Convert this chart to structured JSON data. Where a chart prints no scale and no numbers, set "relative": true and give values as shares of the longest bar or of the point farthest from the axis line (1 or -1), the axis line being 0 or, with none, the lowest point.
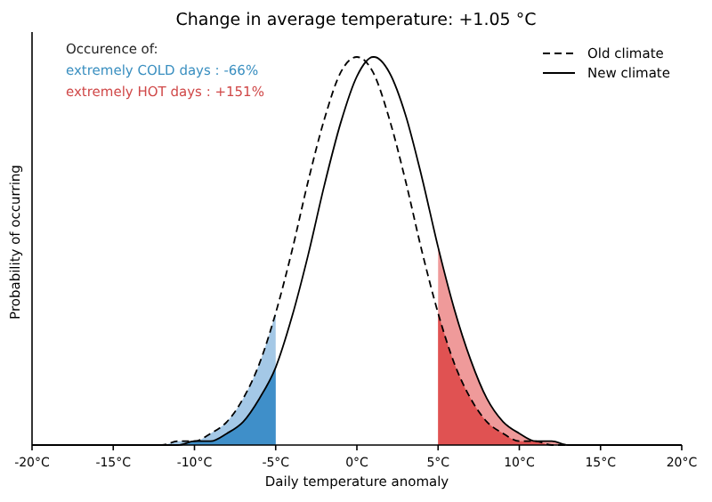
{
  "chart_data": {
    "type": "line",
    "title": "Change in average temperature: +1.05 °C",
    "xlabel": "Daily temperature anomaly",
    "ylabel": "Probability of occurring",
    "relative": true,
    "xlim": [
      -20,
      20
    ],
    "xticks": [
      {
        "value": -20,
        "label": "-20°C"
      },
      {
        "value": -15,
        "label": "-15°C"
      },
      {
        "value": -10,
        "label": "-10°C"
      },
      {
        "value": -5,
        "label": "-5°C"
      },
      {
        "value": 0,
        "label": "0°C"
      },
      {
        "value": 5,
        "label": "5°C"
      },
      {
        "value": 10,
        "label": "10°C"
      },
      {
        "value": 15,
        "label": "15°C"
      },
      {
        "value": 20,
        "label": "20°C"
      }
    ],
    "annotations": [
      "Occurence of:",
      "extremely COLD days : -66%",
      "extremely HOT days : +151%"
    ],
    "legend": "top right",
    "grid": false,
    "series": [
      {
        "type": "area",
        "color": "#a4c8e6",
        "x": [
          -20,
          -15,
          -14,
          -13,
          -12,
          -11,
          -10,
          -9,
          -8,
          -7,
          -6,
          -5
        ],
        "values": [
          0,
          0,
          0,
          0,
          0,
          0.01,
          0.01,
          0.03,
          0.06,
          0.12,
          0.21,
          0.34
        ]
      },
      {
        "type": "area",
        "color": "#3f8fc9",
        "x": [
          -20,
          -15,
          -14,
          -13,
          -12,
          -11,
          -10,
          -9,
          -8,
          -7,
          -6,
          -5
        ],
        "values": [
          0,
          0,
          0,
          0,
          0,
          0,
          0.01,
          0.01,
          0.03,
          0.06,
          0.12,
          0.2
        ]
      },
      {
        "type": "area",
        "color": "#ef9a9a",
        "x": [
          5,
          6,
          7,
          8,
          9,
          10,
          11,
          12,
          13,
          14,
          15,
          20
        ],
        "values": [
          0.51,
          0.35,
          0.22,
          0.12,
          0.06,
          0.03,
          0.01,
          0.01,
          0,
          0,
          0,
          0
        ]
      },
      {
        "type": "area",
        "color": "#e05252",
        "x": [
          5,
          6,
          7,
          8,
          9,
          10,
          11,
          12,
          13,
          14,
          15,
          20
        ],
        "values": [
          0.34,
          0.21,
          0.12,
          0.06,
          0.03,
          0.01,
          0.01,
          0,
          0,
          0,
          0,
          0
        ]
      },
      {
        "type": "line",
        "name": "Old climate",
        "color": "#000000",
        "line_style": "dashed",
        "x": [
          -20,
          -15,
          -14,
          -13,
          -12,
          -11,
          -10,
          -9,
          -8,
          -7,
          -6,
          -5,
          -4,
          -3,
          -2,
          -1,
          0,
          1,
          2,
          3,
          4,
          5,
          6,
          7,
          8,
          9,
          10,
          11,
          12,
          13,
          14,
          15,
          20
        ],
        "values": [
          0,
          0,
          0,
          0,
          0,
          0.01,
          0.01,
          0.03,
          0.06,
          0.12,
          0.21,
          0.34,
          0.5,
          0.68,
          0.84,
          0.96,
          1,
          0.96,
          0.84,
          0.68,
          0.5,
          0.34,
          0.21,
          0.12,
          0.06,
          0.03,
          0.01,
          0.01,
          0,
          0,
          0,
          0,
          0
        ]
      },
      {
        "type": "line",
        "name": "New climate",
        "color": "#000000",
        "line_style": "solid",
        "x": [
          -20,
          -15,
          -14,
          -13,
          -12,
          -11,
          -10,
          -9,
          -8,
          -7,
          -6,
          -5,
          -4,
          -3,
          -2,
          -1,
          0,
          1,
          1.05,
          2,
          3,
          4,
          5,
          6,
          7,
          8,
          9,
          10,
          11,
          12,
          13,
          14,
          15,
          20
        ],
        "values": [
          0,
          0,
          0,
          0,
          0,
          0,
          0.01,
          0.01,
          0.03,
          0.06,
          0.12,
          0.2,
          0.33,
          0.49,
          0.67,
          0.83,
          0.95,
          1,
          1,
          0.96,
          0.85,
          0.69,
          0.51,
          0.35,
          0.22,
          0.12,
          0.06,
          0.03,
          0.01,
          0.01,
          0,
          0,
          0,
          0
        ]
      }
    ]
  }
}
